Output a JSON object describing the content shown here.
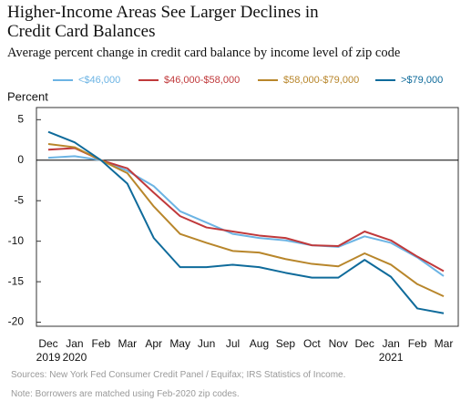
{
  "chart_data": {
    "type": "line",
    "title": "Higher-Income Areas See Larger Declines in Credit Card Balances",
    "subtitle": "Average percent change in credit card balance by income level of zip code",
    "y_label": "Percent",
    "categories": [
      "Dec 2019",
      "Jan 2020",
      "Feb",
      "Mar",
      "Apr",
      "May",
      "Jun",
      "Jul",
      "Aug",
      "Sep",
      "Oct",
      "Nov",
      "Dec",
      "Jan 2021",
      "Feb",
      "Mar"
    ],
    "series": [
      {
        "name": "<$46,000",
        "color": "#6cb4e4",
        "values": [
          0.3,
          0.5,
          0,
          -1.3,
          -3.2,
          -6.3,
          -7.7,
          -9.1,
          -9.6,
          -9.9,
          -10.5,
          -10.7,
          -9.4,
          -10.2,
          -12,
          -14.3
        ]
      },
      {
        "name": "$46,000-$58,000",
        "color": "#c0393b",
        "values": [
          1.3,
          1.5,
          0,
          -1,
          -4,
          -6.9,
          -8.3,
          -8.8,
          -9.3,
          -9.6,
          -10.5,
          -10.6,
          -8.8,
          -9.9,
          -11.9,
          -13.7
        ]
      },
      {
        "name": "$58,000-$79,000",
        "color": "#b8862b",
        "values": [
          2,
          1.6,
          0,
          -1.6,
          -5.7,
          -9.1,
          -10.2,
          -11.2,
          -11.4,
          -12.2,
          -12.8,
          -13.1,
          -11.5,
          -12.9,
          -15.3,
          -16.8
        ]
      },
      {
        "name": ">$79,000",
        "color": "#0f6b9b",
        "values": [
          3.5,
          2.2,
          0,
          -2.9,
          -9.6,
          -13.2,
          -13.2,
          -12.9,
          -13.2,
          -13.9,
          -14.5,
          -14.5,
          -12.3,
          -14.4,
          -18.3,
          -18.9
        ]
      }
    ],
    "ylim": [
      -20.5,
      6.5
    ],
    "yticks": [
      5,
      0,
      -5,
      -10,
      -15,
      -20
    ],
    "source": "Sources: New York Fed Consumer Credit Panel / Equifax; IRS Statistics of Income.",
    "note": "Note: Borrowers are matched using Feb-2020 zip codes."
  }
}
